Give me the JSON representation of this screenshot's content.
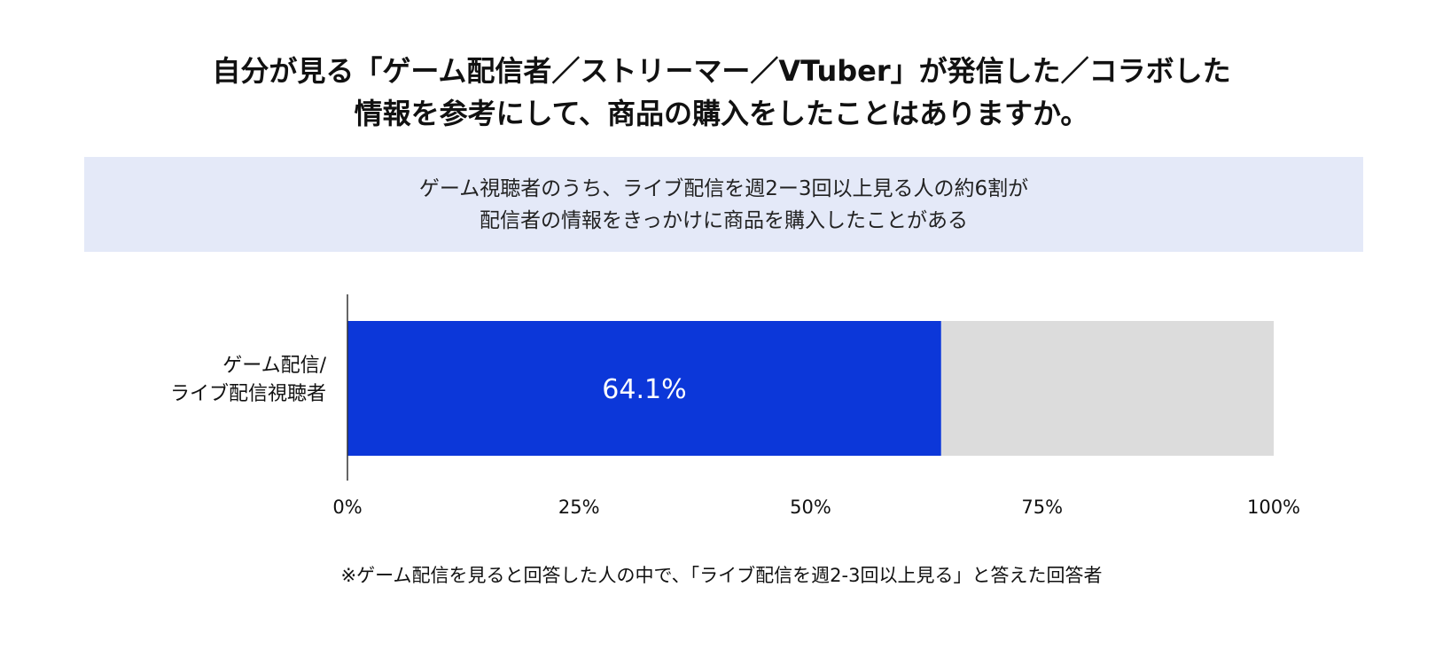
{
  "title": {
    "line1": "自分が見る「ゲーム配信者／ストリーマー／VTuber」が発信した／コラボした",
    "line2": "情報を参考にして、商品の購入をしたことはありますか。"
  },
  "callout": {
    "line1": "ゲーム視聴者のうち、ライブ配信を週2ー3回以上見る人の約6割が",
    "line2": "配信者の情報をきっかけに商品を購入したことがある"
  },
  "chart_data": {
    "type": "bar",
    "orientation": "horizontal",
    "stacked": true,
    "categories": [
      "ゲーム配信/ライブ配信視聴者"
    ],
    "category_label_lines": [
      "ゲーム配信/",
      "ライブ配信視聴者"
    ],
    "series": [
      {
        "values": [
          64.1
        ],
        "color": "#0c37d9",
        "data_labels": [
          "64.1%"
        ]
      },
      {
        "values": [
          35.9
        ],
        "color": "#dcdcdc"
      }
    ],
    "xlim": [
      0,
      100
    ],
    "xticks": [
      0,
      25,
      50,
      75,
      100
    ],
    "xtick_labels": [
      "0%",
      "25%",
      "50%",
      "75%",
      "100%"
    ],
    "grid": false,
    "legend": "none"
  },
  "footnote": "※ゲーム配信を見ると回答した人の中で、「ライブ配信を週2-3回以上見る」と答えた回答者",
  "colors": {
    "primary_bar": "#0c37d9",
    "remainder_bar": "#dcdcdc",
    "callout_background": "#e4e9f8",
    "axis_line": "#333333"
  }
}
